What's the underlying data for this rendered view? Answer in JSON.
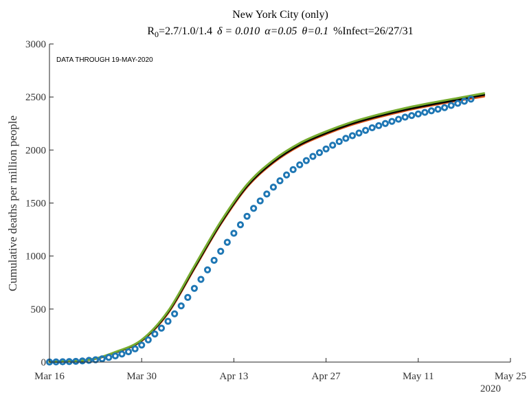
{
  "chart_data": {
    "type": "line",
    "title": "New York City (only)",
    "subtitle": {
      "r_letter": "R",
      "r_sub": "0",
      "r_values": "=2.7/1.0/1.4",
      "delta": "δ = 0.010",
      "alpha": "α=0.05",
      "theta": "θ=0.1",
      "infect": "%Infect=26/27/31"
    },
    "annotation": "DATA THROUGH 19-MAY-2020",
    "ylabel": "Cumulative deaths per million people",
    "xlabel": "",
    "x_year_label": "2020",
    "ylim": [
      0,
      3000
    ],
    "yticks": [
      0,
      500,
      1000,
      1500,
      2000,
      2500,
      3000
    ],
    "xlim": [
      "2020-03-16",
      "2020-05-25"
    ],
    "xticks": [
      {
        "date": "2020-03-16",
        "label": "Mar 16"
      },
      {
        "date": "2020-03-30",
        "label": "Mar 30"
      },
      {
        "date": "2020-04-13",
        "label": "Apr 13"
      },
      {
        "date": "2020-04-27",
        "label": "Apr 27"
      },
      {
        "date": "2020-05-11",
        "label": "May 11"
      },
      {
        "date": "2020-05-25",
        "label": "May 25"
      }
    ],
    "grid": false,
    "series": [
      {
        "color": "#d95319",
        "kind": "line",
        "x": [
          "2020-03-16",
          "2020-03-22",
          "2020-03-26",
          "2020-03-30",
          "2020-04-03",
          "2020-04-07",
          "2020-04-11",
          "2020-04-15",
          "2020-04-19",
          "2020-04-23",
          "2020-04-27",
          "2020-05-01",
          "2020-05-05",
          "2020-05-09",
          "2020-05-13",
          "2020-05-17",
          "2020-05-21"
        ],
        "y": [
          2,
          20,
          90,
          200,
          460,
          880,
          1300,
          1650,
          1880,
          2040,
          2150,
          2240,
          2310,
          2370,
          2420,
          2465,
          2505
        ]
      },
      {
        "color": "#000000",
        "kind": "line",
        "x": [
          "2020-03-16",
          "2020-03-22",
          "2020-03-26",
          "2020-03-30",
          "2020-04-03",
          "2020-04-07",
          "2020-04-11",
          "2020-04-15",
          "2020-04-19",
          "2020-04-23",
          "2020-04-27",
          "2020-05-01",
          "2020-05-05",
          "2020-05-09",
          "2020-05-13",
          "2020-05-17",
          "2020-05-21"
        ],
        "y": [
          2,
          21,
          92,
          205,
          470,
          890,
          1310,
          1660,
          1890,
          2050,
          2160,
          2250,
          2320,
          2380,
          2430,
          2475,
          2520
        ]
      },
      {
        "color": "#77ac30",
        "kind": "line",
        "x": [
          "2020-03-16",
          "2020-03-22",
          "2020-03-26",
          "2020-03-30",
          "2020-04-03",
          "2020-04-07",
          "2020-04-11",
          "2020-04-15",
          "2020-04-19",
          "2020-04-23",
          "2020-04-27",
          "2020-05-01",
          "2020-05-05",
          "2020-05-09",
          "2020-05-13",
          "2020-05-17",
          "2020-05-21"
        ],
        "y": [
          2,
          22,
          95,
          210,
          480,
          905,
          1325,
          1675,
          1905,
          2065,
          2175,
          2265,
          2335,
          2395,
          2445,
          2490,
          2535
        ]
      },
      {
        "color": "#1f77b4",
        "kind": "scatter",
        "x": [
          "2020-03-16",
          "2020-03-17",
          "2020-03-18",
          "2020-03-19",
          "2020-03-20",
          "2020-03-21",
          "2020-03-22",
          "2020-03-23",
          "2020-03-24",
          "2020-03-25",
          "2020-03-26",
          "2020-03-27",
          "2020-03-28",
          "2020-03-29",
          "2020-03-30",
          "2020-03-31",
          "2020-04-01",
          "2020-04-02",
          "2020-04-03",
          "2020-04-04",
          "2020-04-05",
          "2020-04-06",
          "2020-04-07",
          "2020-04-08",
          "2020-04-09",
          "2020-04-10",
          "2020-04-11",
          "2020-04-12",
          "2020-04-13",
          "2020-04-14",
          "2020-04-15",
          "2020-04-16",
          "2020-04-17",
          "2020-04-18",
          "2020-04-19",
          "2020-04-20",
          "2020-04-21",
          "2020-04-22",
          "2020-04-23",
          "2020-04-24",
          "2020-04-25",
          "2020-04-26",
          "2020-04-27",
          "2020-04-28",
          "2020-04-29",
          "2020-04-30",
          "2020-05-01",
          "2020-05-02",
          "2020-05-03",
          "2020-05-04",
          "2020-05-05",
          "2020-05-06",
          "2020-05-07",
          "2020-05-08",
          "2020-05-09",
          "2020-05-10",
          "2020-05-11",
          "2020-05-12",
          "2020-05-13",
          "2020-05-14",
          "2020-05-15",
          "2020-05-16",
          "2020-05-17",
          "2020-05-18",
          "2020-05-19"
        ],
        "y": [
          1,
          2,
          3,
          5,
          7,
          11,
          16,
          22,
          31,
          44,
          58,
          76,
          97,
          125,
          160,
          210,
          265,
          320,
          385,
          455,
          530,
          610,
          695,
          780,
          870,
          960,
          1045,
          1130,
          1215,
          1295,
          1375,
          1450,
          1520,
          1585,
          1650,
          1710,
          1765,
          1815,
          1860,
          1900,
          1940,
          1975,
          2010,
          2045,
          2080,
          2110,
          2135,
          2160,
          2185,
          2210,
          2230,
          2250,
          2270,
          2290,
          2310,
          2325,
          2340,
          2355,
          2370,
          2385,
          2400,
          2420,
          2440,
          2460,
          2480
        ]
      }
    ]
  }
}
